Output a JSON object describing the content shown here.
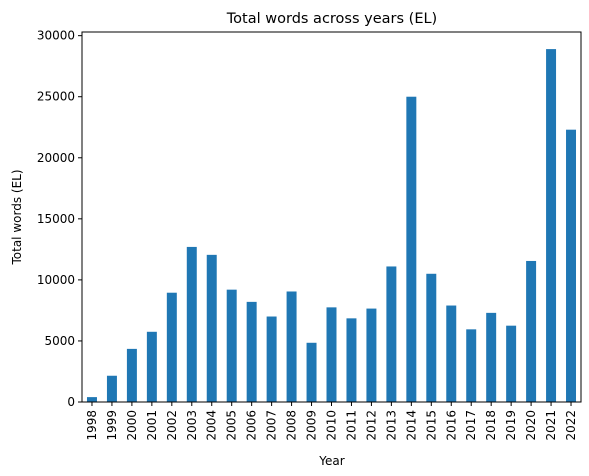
{
  "chart_data": {
    "type": "bar",
    "title": "Total words across years (EL)",
    "xlabel": "Year",
    "ylabel": "Total words (EL)",
    "categories": [
      "1998",
      "1999",
      "2000",
      "2001",
      "2002",
      "2003",
      "2004",
      "2005",
      "2006",
      "2007",
      "2008",
      "2009",
      "2010",
      "2011",
      "2012",
      "2013",
      "2014",
      "2015",
      "2016",
      "2017",
      "2018",
      "2019",
      "2020",
      "2021",
      "2022"
    ],
    "values": [
      400,
      2150,
      4350,
      5750,
      8950,
      12700,
      12050,
      9200,
      8200,
      7000,
      9050,
      4850,
      7750,
      6850,
      7650,
      11100,
      25000,
      10500,
      7900,
      5950,
      7300,
      6250,
      11550,
      28900,
      22300
    ],
    "ylim": [
      0,
      30300
    ],
    "yticks": [
      0,
      5000,
      10000,
      15000,
      20000,
      25000,
      30000
    ],
    "bar_color": "#1f77b4",
    "grid": false,
    "legend": "none"
  }
}
